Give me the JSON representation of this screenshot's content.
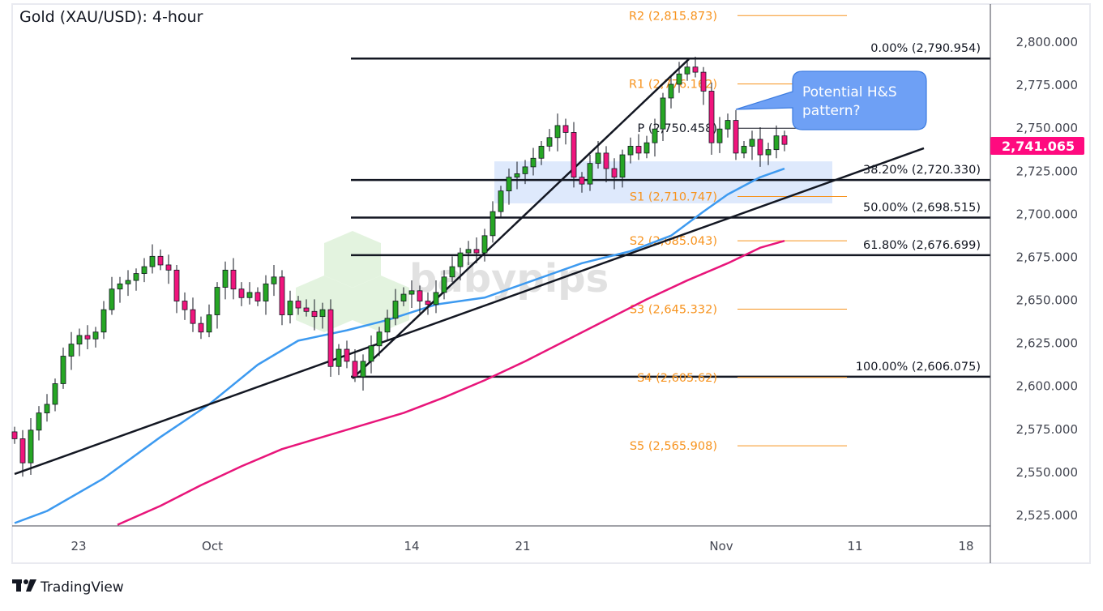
{
  "header": {
    "title": "Gold (XAU/USD): 4-hour"
  },
  "footer": {
    "brand": "TradingView"
  },
  "watermark": {
    "text": "babypips"
  },
  "annotation": {
    "lines": [
      "Potential H&S",
      "pattern?"
    ],
    "color": "#6ea0f5"
  },
  "last_price": {
    "label": "2,741.065",
    "color": "#ff0a7f"
  },
  "chart_data": {
    "type": "candlestick",
    "title": "Gold (XAU/USD): 4-hour",
    "ylim": [
      2515,
      2825
    ],
    "y_ticks": [
      "2,800.000",
      "2,775.000",
      "2,750.000",
      "2,725.000",
      "2,700.000",
      "2,675.000",
      "2,650.000",
      "2,625.000",
      "2,600.000",
      "2,575.000",
      "2,550.000",
      "2,525.000"
    ],
    "y_tick_values": [
      2800,
      2775,
      2750,
      2725,
      2700,
      2675,
      2650,
      2625,
      2600,
      2575,
      2550,
      2525
    ],
    "x_ticks": [
      "23",
      "Oct",
      "14",
      "21",
      "Nov",
      "11",
      "18"
    ],
    "grid": false,
    "colors": {
      "up": "#26a624",
      "down": "#f0157d",
      "ma_fast": "#3d9af0",
      "ma_slow": "#e8157a",
      "pivot": "#f7931e",
      "fib": "#131722",
      "zone": "#d6e3fb"
    },
    "closes": [
      2570,
      2556,
      2575,
      2585,
      2590,
      2602,
      2618,
      2625,
      2630,
      2628,
      2632,
      2645,
      2657,
      2660,
      2662,
      2666,
      2670,
      2676,
      2671,
      2668,
      2650,
      2645,
      2637,
      2632,
      2642,
      2658,
      2668,
      2657,
      2652,
      2655,
      2650,
      2660,
      2664,
      2642,
      2650,
      2646,
      2644,
      2641,
      2645,
      2612,
      2622,
      2615,
      2606,
      2615,
      2624,
      2632,
      2640,
      2650,
      2654,
      2656,
      2650,
      2648,
      2655,
      2664,
      2670,
      2678,
      2680,
      2678,
      2688,
      2702,
      2714,
      2722,
      2724,
      2728,
      2733,
      2740,
      2745,
      2752,
      2748,
      2722,
      2718,
      2730,
      2736,
      2727,
      2722,
      2735,
      2740,
      2736,
      2742,
      2750,
      2768,
      2776,
      2782,
      2786,
      2783,
      2772,
      2742,
      2750,
      2755,
      2736,
      2740,
      2744,
      2735,
      2738,
      2746,
      2741.065
    ],
    "ma_fast": [
      [
        0,
        2521
      ],
      [
        4,
        2528
      ],
      [
        11,
        2547
      ],
      [
        18,
        2571
      ],
      [
        24,
        2590
      ],
      [
        30,
        2613
      ],
      [
        35,
        2627
      ],
      [
        41,
        2633
      ],
      [
        46,
        2639
      ],
      [
        52,
        2648
      ],
      [
        58,
        2652
      ],
      [
        64,
        2662
      ],
      [
        70,
        2672
      ],
      [
        76,
        2679
      ],
      [
        81,
        2688
      ],
      [
        85,
        2702
      ],
      [
        88,
        2712
      ],
      [
        92,
        2722
      ],
      [
        95,
        2727
      ]
    ],
    "ma_slow": [
      [
        12.7,
        2520
      ],
      [
        18,
        2531
      ],
      [
        23,
        2543
      ],
      [
        28,
        2554
      ],
      [
        33,
        2564
      ],
      [
        38,
        2571
      ],
      [
        43,
        2578
      ],
      [
        48,
        2585
      ],
      [
        53,
        2594
      ],
      [
        58,
        2604
      ],
      [
        63,
        2615
      ],
      [
        68,
        2627
      ],
      [
        73,
        2639
      ],
      [
        78,
        2651
      ],
      [
        83,
        2662
      ],
      [
        88,
        2672
      ],
      [
        92,
        2681
      ],
      [
        95,
        2685
      ]
    ],
    "trendlines": [
      {
        "from": [
          0,
          2549.5
        ],
        "to": [
          112.2,
          2738.8
        ]
      },
      {
        "from": [
          41.7,
          2605
        ],
        "to": [
          83.2,
          2790.6
        ]
      }
    ],
    "zone": {
      "from_index": 59.2,
      "to_index": 100.9,
      "top": 2731.2,
      "bottom": 2706.8
    },
    "fibonacci": [
      {
        "label": "0.00% (2,790.954)",
        "value": 2790.954
      },
      {
        "label": "38.20% (2,720.330)",
        "value": 2720.33
      },
      {
        "label": "50.00% (2,698.515)",
        "value": 2698.515
      },
      {
        "label": "61.80% (2,676.699)",
        "value": 2676.699
      },
      {
        "label": "100.00% (2,606.075)",
        "value": 2606.075
      }
    ],
    "pivots": [
      {
        "label": "R2 (2,815.873)",
        "value": 2815.873
      },
      {
        "label": "R1 (2,776.162)",
        "value": 2776.162
      },
      {
        "label": "P (2,750.458)",
        "value": 2750.458
      },
      {
        "label": "S1 (2,710.747)",
        "value": 2710.747
      },
      {
        "label": "S2 (2,685.043)",
        "value": 2685.043
      },
      {
        "label": "S3 (2,645.332)",
        "value": 2645.332
      },
      {
        "label": "S4 (2,605.62)",
        "value": 2605.62
      },
      {
        "label": "S5 (2,565.908)",
        "value": 2565.908
      }
    ]
  }
}
